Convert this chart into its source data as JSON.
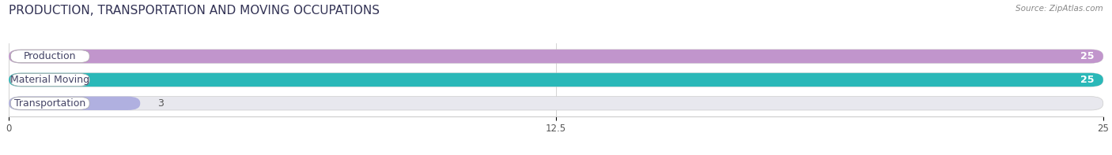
{
  "title": "PRODUCTION, TRANSPORTATION AND MOVING OCCUPATIONS",
  "source": "Source: ZipAtlas.com",
  "categories": [
    "Production",
    "Material Moving",
    "Transportation"
  ],
  "values": [
    25,
    25,
    3
  ],
  "bar_colors": [
    "#c195cc",
    "#2ab8b8",
    "#b0b0e0"
  ],
  "bar_bg_color": "#e8e8ee",
  "xlim": [
    0,
    25
  ],
  "xticks": [
    0,
    12.5,
    25
  ],
  "bar_height": 0.58,
  "background_color": "#ffffff",
  "label_fontsize": 9,
  "value_fontsize": 9,
  "title_fontsize": 11,
  "label_box_color": "#ffffff",
  "label_text_color": "#444466",
  "value_color_inside": "#ffffff",
  "value_color_outside": "#555555"
}
